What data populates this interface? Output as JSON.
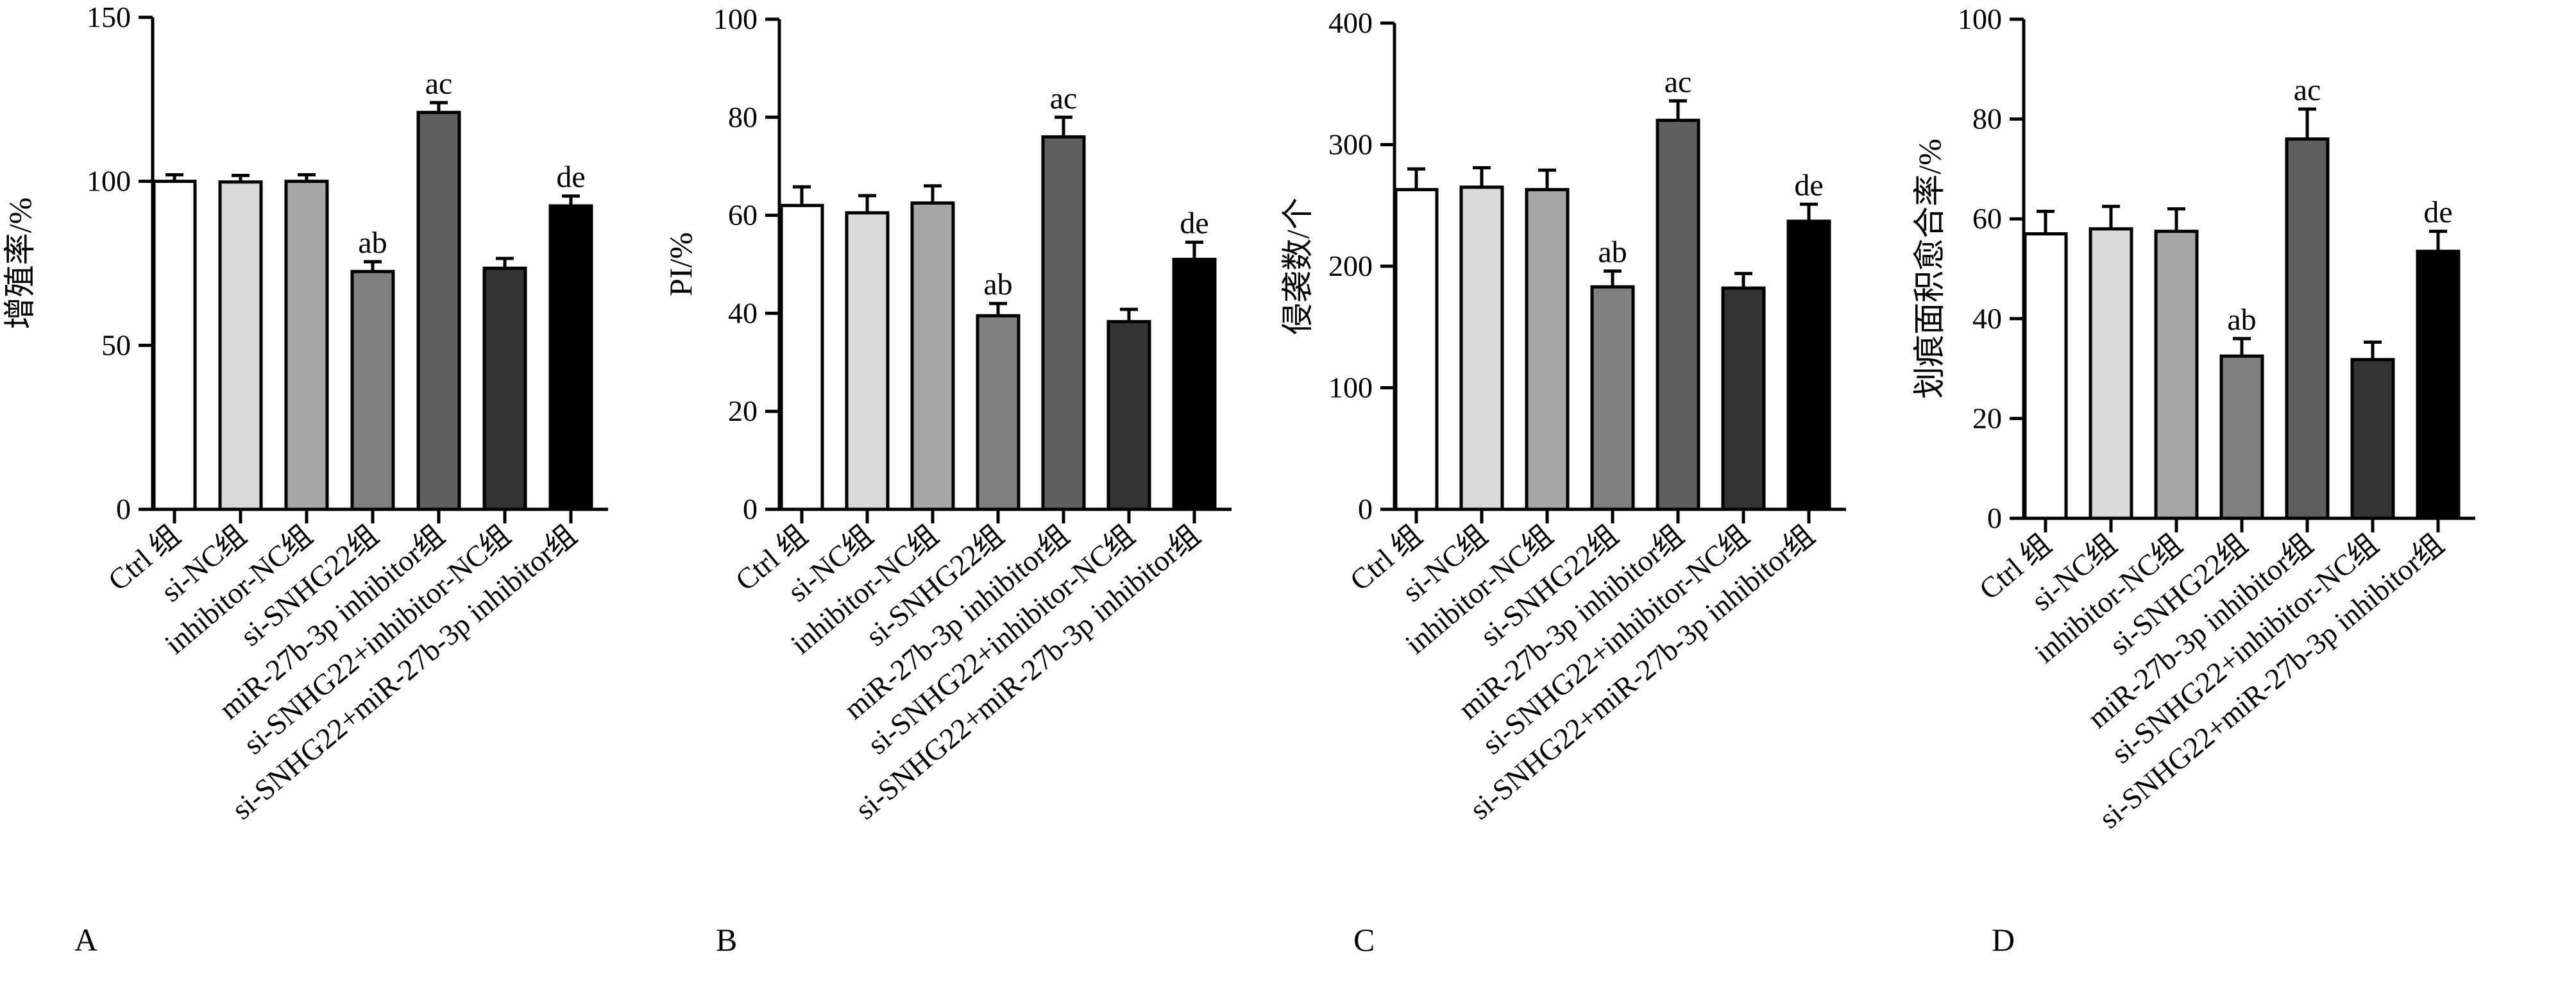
{
  "chart_data": [
    {
      "type": "bar",
      "panel_label": "A",
      "ylabel": "增殖率/%",
      "ylim": [
        0,
        150
      ],
      "yticks": [
        0,
        50,
        100,
        150
      ],
      "categories": [
        "Ctrl 组",
        "si-NC组",
        "inhibitor-NC组",
        "si-SNHG22组",
        "miR-27b-3p inhibitor组",
        "si-SNHG22+inhibitor-NC组",
        "si-SNHG22+miR-27b-3p inhibitor组"
      ],
      "values": [
        100,
        99.8,
        100,
        72.5,
        121,
        73.5,
        92.5
      ],
      "errors": [
        2,
        2,
        2,
        3,
        3,
        3,
        3
      ],
      "annotations": [
        "",
        "",
        "",
        "ab",
        "ac",
        "",
        "de"
      ],
      "bar_colors": [
        "#ffffff",
        "#d9d9d9",
        "#a6a6a6",
        "#808080",
        "#5f5f5f",
        "#333333",
        "#000000"
      ],
      "grid": false
    },
    {
      "type": "bar",
      "panel_label": "B",
      "ylabel": "PI/%",
      "ylim": [
        0,
        100
      ],
      "yticks": [
        0,
        20,
        40,
        60,
        80,
        100
      ],
      "categories": [
        "Ctrl 组",
        "si-NC组",
        "inhibitor-NC组",
        "si-SNHG22组",
        "miR-27b-3p inhibitor组",
        "si-SNHG22+inhibitor-NC组",
        "si-SNHG22+miR-27b-3p inhibitor组"
      ],
      "values": [
        62,
        60.5,
        62.5,
        39.5,
        76,
        38.3,
        51
      ],
      "errors": [
        3.8,
        3.5,
        3.5,
        2.5,
        4,
        2.5,
        3.5
      ],
      "annotations": [
        "",
        "",
        "",
        "ab",
        "ac",
        "",
        "de"
      ],
      "bar_colors": [
        "#ffffff",
        "#d9d9d9",
        "#a6a6a6",
        "#808080",
        "#5f5f5f",
        "#333333",
        "#000000"
      ],
      "grid": false
    },
    {
      "type": "bar",
      "panel_label": "C",
      "ylabel": "侵袭数/个",
      "ylim": [
        0,
        400
      ],
      "yticks": [
        0,
        100,
        200,
        300,
        400
      ],
      "categories": [
        "Ctrl 组",
        "si-NC组",
        "inhibitor-NC组",
        "si-SNHG22组",
        "miR-27b-3p inhibitor组",
        "si-SNHG22+inhibitor-NC组",
        "si-SNHG22+miR-27b-3p inhibitor组"
      ],
      "values": [
        263,
        265,
        263,
        183,
        320,
        182,
        237
      ],
      "errors": [
        17,
        16,
        16,
        13,
        16,
        12,
        14
      ],
      "annotations": [
        "",
        "",
        "",
        "ab",
        "ac",
        "",
        "de"
      ],
      "bar_colors": [
        "#ffffff",
        "#d9d9d9",
        "#a6a6a6",
        "#808080",
        "#5f5f5f",
        "#333333",
        "#000000"
      ],
      "grid": false
    },
    {
      "type": "bar",
      "panel_label": "D",
      "ylabel": "划痕面积愈合率/%",
      "ylim": [
        0,
        100
      ],
      "yticks": [
        0,
        20,
        40,
        60,
        80,
        100
      ],
      "categories": [
        "Ctrl 组",
        "si-NC组",
        "inhibitor-NC组",
        "si-SNHG22组",
        "miR-27b-3p inhibitor组",
        "si-SNHG22+inhibitor-NC组",
        "si-SNHG22+miR-27b-3p inhibitor组"
      ],
      "values": [
        57,
        58,
        57.5,
        32.5,
        76,
        31.8,
        53.5
      ],
      "errors": [
        4.5,
        4.5,
        4.5,
        3.5,
        6,
        3.5,
        4
      ],
      "annotations": [
        "",
        "",
        "",
        "ab",
        "ac",
        "",
        "de"
      ],
      "bar_colors": [
        "#ffffff",
        "#d9d9d9",
        "#a6a6a6",
        "#808080",
        "#5f5f5f",
        "#333333",
        "#000000"
      ],
      "grid": false
    }
  ]
}
